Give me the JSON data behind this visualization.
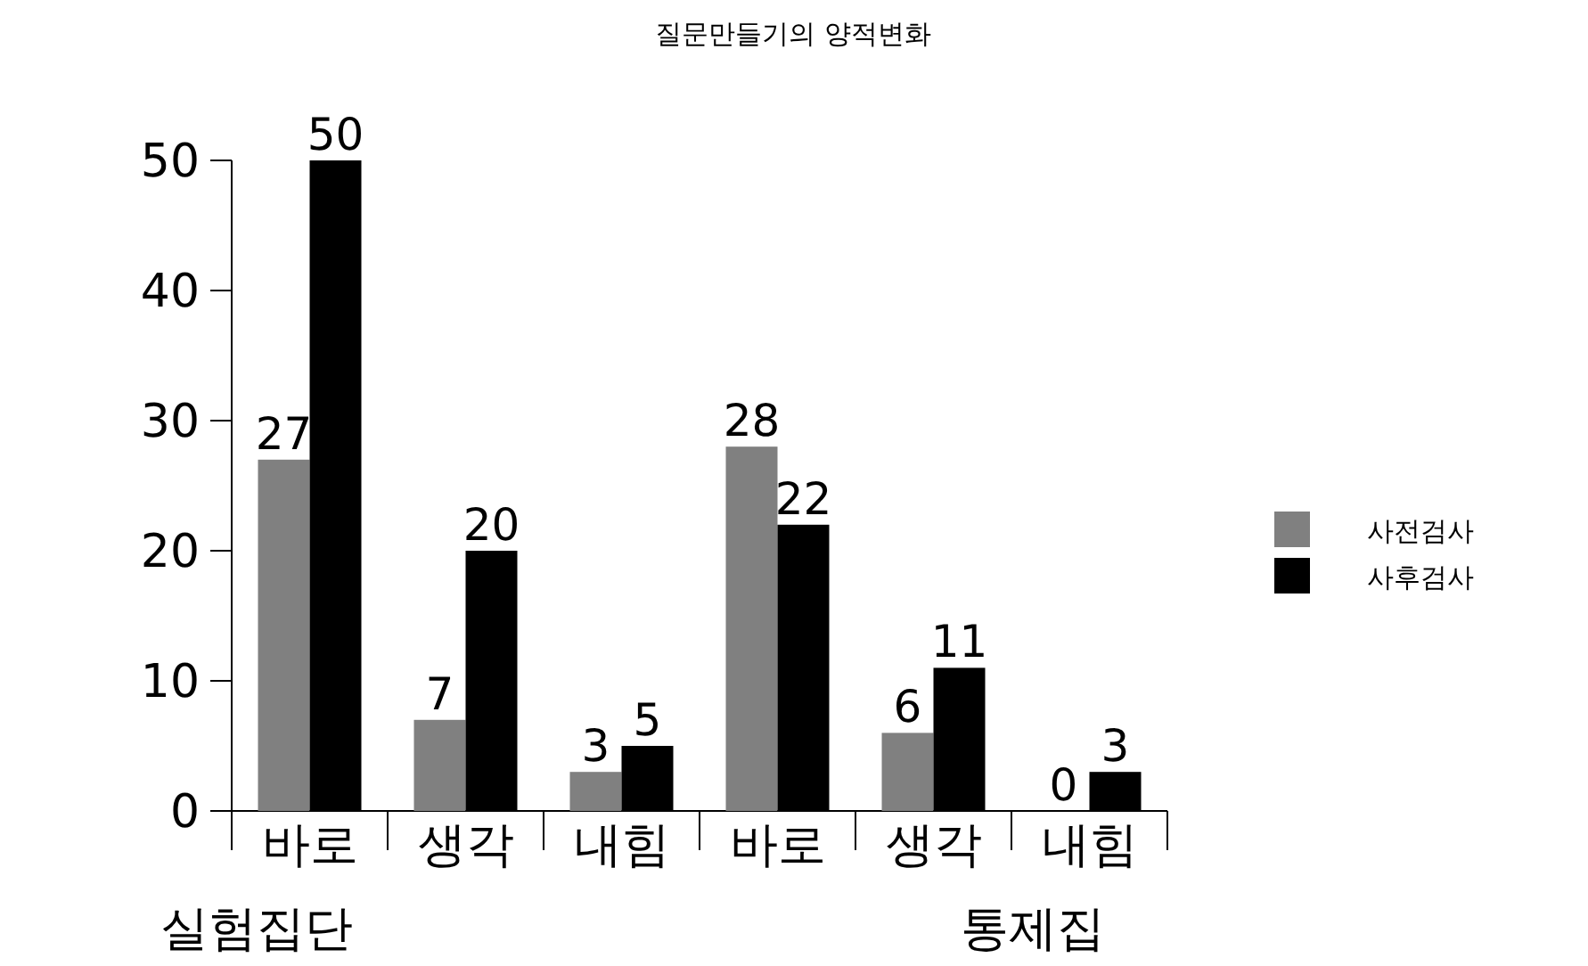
{
  "chart_data": {
    "type": "bar",
    "title": "질문만들기의 양적변화",
    "categories": [
      "바로",
      "생각",
      "내힘",
      "바로",
      "생각",
      "내힘"
    ],
    "series": [
      {
        "name": "사전검사",
        "color": "#808080",
        "values": [
          27,
          7,
          3,
          28,
          6,
          0
        ]
      },
      {
        "name": "사후검사",
        "color": "#000000",
        "values": [
          50,
          20,
          5,
          22,
          11,
          3
        ]
      }
    ],
    "ylim": [
      0,
      50
    ],
    "yticks": [
      0,
      10,
      20,
      30,
      40,
      50
    ],
    "data_labels": true,
    "legend": "right",
    "grid": false,
    "annotations": [
      "실험집단",
      "통제집"
    ]
  }
}
